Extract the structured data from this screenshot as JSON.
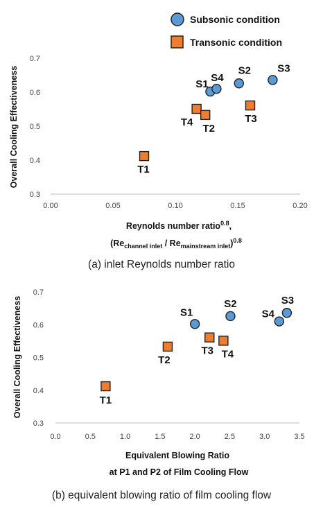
{
  "legend": {
    "subsonic_label": "Subsonic condition",
    "transonic_label": "Transonic condition",
    "subsonic_color": "#5b9bd5",
    "transonic_color": "#ed7d31"
  },
  "chart_data": [
    {
      "type": "scatter",
      "caption": "(a) inlet Reynolds number ratio",
      "xlabel_line1": "Reynolds number ratio",
      "xlabel_line1_sup": "0.8",
      "xlabel_line1_end": ",",
      "xlabel_line2": {
        "open": "(Re",
        "sub1": "channel inlet",
        "mid": " / Re",
        "sub2": "mainstream inlet",
        "close": ")",
        "sup": "0.8"
      },
      "ylabel": "Overall Cooling Effectiveness",
      "xlim": [
        0.0,
        0.2
      ],
      "ylim": [
        0.3,
        0.7
      ],
      "xticks": [
        "0.00",
        "0.05",
        "0.10",
        "0.15",
        "0.20"
      ],
      "xtick_values": [
        0.0,
        0.05,
        0.1,
        0.15,
        0.2
      ],
      "yticks": [
        "0.3",
        "0.4",
        "0.5",
        "0.6",
        "0.7"
      ],
      "ytick_values": [
        0.3,
        0.4,
        0.5,
        0.6,
        0.7
      ],
      "grid": false,
      "series": [
        {
          "name": "Subsonic condition",
          "marker": "circle",
          "points": [
            {
              "label": "S1",
              "x": 0.128,
              "y": 0.602
            },
            {
              "label": "S4",
              "x": 0.133,
              "y": 0.61
            },
            {
              "label": "S2",
              "x": 0.151,
              "y": 0.626
            },
            {
              "label": "S3",
              "x": 0.178,
              "y": 0.636
            }
          ]
        },
        {
          "name": "Transonic condition",
          "marker": "square",
          "points": [
            {
              "label": "T1",
              "x": 0.075,
              "y": 0.412
            },
            {
              "label": "T4",
              "x": 0.117,
              "y": 0.551
            },
            {
              "label": "T2",
              "x": 0.124,
              "y": 0.533
            },
            {
              "label": "T3",
              "x": 0.16,
              "y": 0.561
            }
          ]
        }
      ]
    },
    {
      "type": "scatter",
      "caption": "(b) equivalent blowing ratio of film cooling flow",
      "xlabel_line1": "Equivalent Blowing Ratio",
      "xlabel_line2_text": "at P1 and P2 of Film Cooling Flow",
      "ylabel": "Overall Cooling Effectiveness",
      "xlim": [
        0.0,
        3.5
      ],
      "ylim": [
        0.3,
        0.7
      ],
      "xticks": [
        "0.0",
        "0.5",
        "1.0",
        "1.5",
        "2.0",
        "2.5",
        "3.0",
        "3.5"
      ],
      "xtick_values": [
        0.0,
        0.5,
        1.0,
        1.5,
        2.0,
        2.5,
        3.0,
        3.5
      ],
      "yticks": [
        "0.3",
        "0.4",
        "0.5",
        "0.6",
        "0.7"
      ],
      "ytick_values": [
        0.3,
        0.4,
        0.5,
        0.6,
        0.7
      ],
      "grid": false,
      "series": [
        {
          "name": "Subsonic condition",
          "marker": "circle",
          "points": [
            {
              "label": "S1",
              "x": 2.0,
              "y": 0.602
            },
            {
              "label": "S2",
              "x": 2.51,
              "y": 0.626
            },
            {
              "label": "S4",
              "x": 3.21,
              "y": 0.61
            },
            {
              "label": "S3",
              "x": 3.32,
              "y": 0.636
            }
          ]
        },
        {
          "name": "Transonic condition",
          "marker": "square",
          "points": [
            {
              "label": "T1",
              "x": 0.72,
              "y": 0.412
            },
            {
              "label": "T2",
              "x": 1.61,
              "y": 0.533
            },
            {
              "label": "T3",
              "x": 2.21,
              "y": 0.561
            },
            {
              "label": "T4",
              "x": 2.41,
              "y": 0.551
            }
          ]
        }
      ]
    }
  ]
}
